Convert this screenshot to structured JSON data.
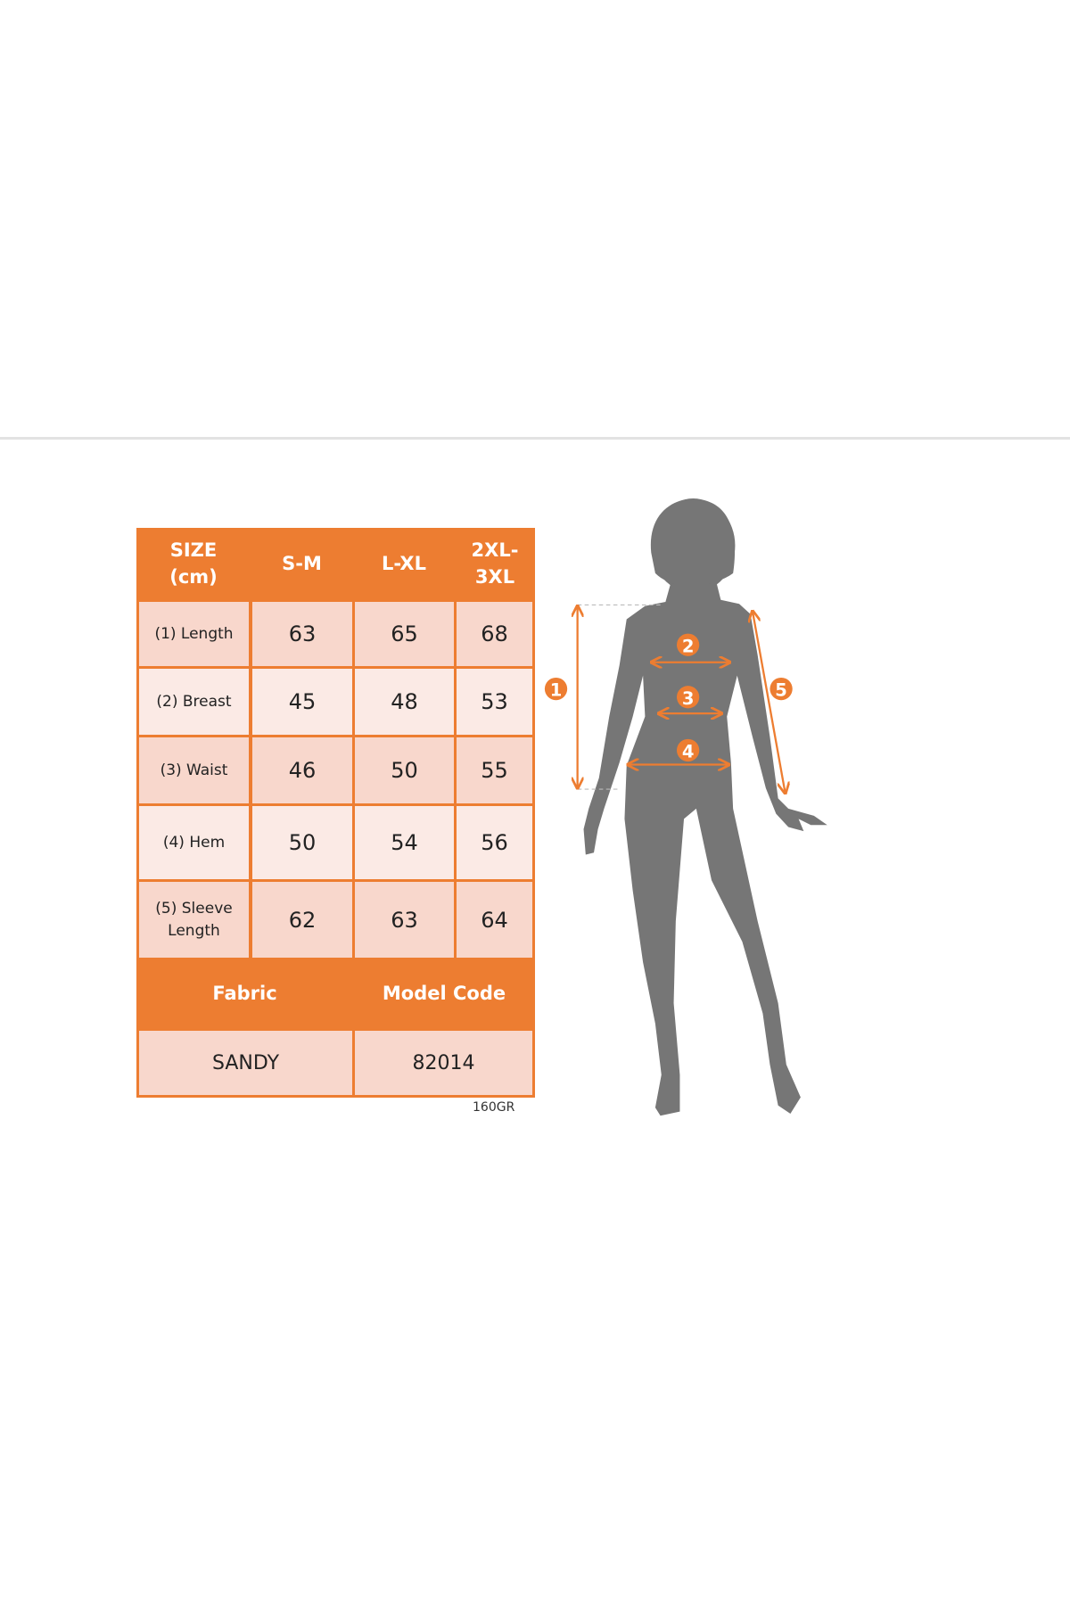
{
  "colors": {
    "accent": "#ED7D31",
    "cell": "#F8D7CC",
    "cell_light": "#FBEAE5",
    "silhouette": "#767676"
  },
  "table": {
    "header": [
      "SIZE (cm)",
      "S-M",
      "L-XL",
      "2XL-3XL"
    ],
    "header_lines": {
      "size": [
        "SIZE",
        "(cm)"
      ],
      "xxl": [
        "2XL-",
        "3XL"
      ]
    },
    "rows": [
      {
        "label": "(1) Length",
        "values": [
          "63",
          "65",
          "68"
        ]
      },
      {
        "label": "(2) Breast",
        "values": [
          "45",
          "48",
          "53"
        ]
      },
      {
        "label": "(3) Waist",
        "values": [
          "46",
          "50",
          "55"
        ]
      },
      {
        "label": "(4) Hem",
        "values": [
          "50",
          "54",
          "56"
        ]
      },
      {
        "label_lines": [
          "(5) Sleeve",
          "Length"
        ],
        "values": [
          "62",
          "63",
          "64"
        ]
      }
    ],
    "footer_header": [
      "Fabric",
      "Model Code"
    ],
    "footer_values": [
      "SANDY",
      "82014"
    ]
  },
  "note": "160GR",
  "figure": {
    "markers": [
      "1",
      "2",
      "3",
      "4",
      "5"
    ]
  }
}
